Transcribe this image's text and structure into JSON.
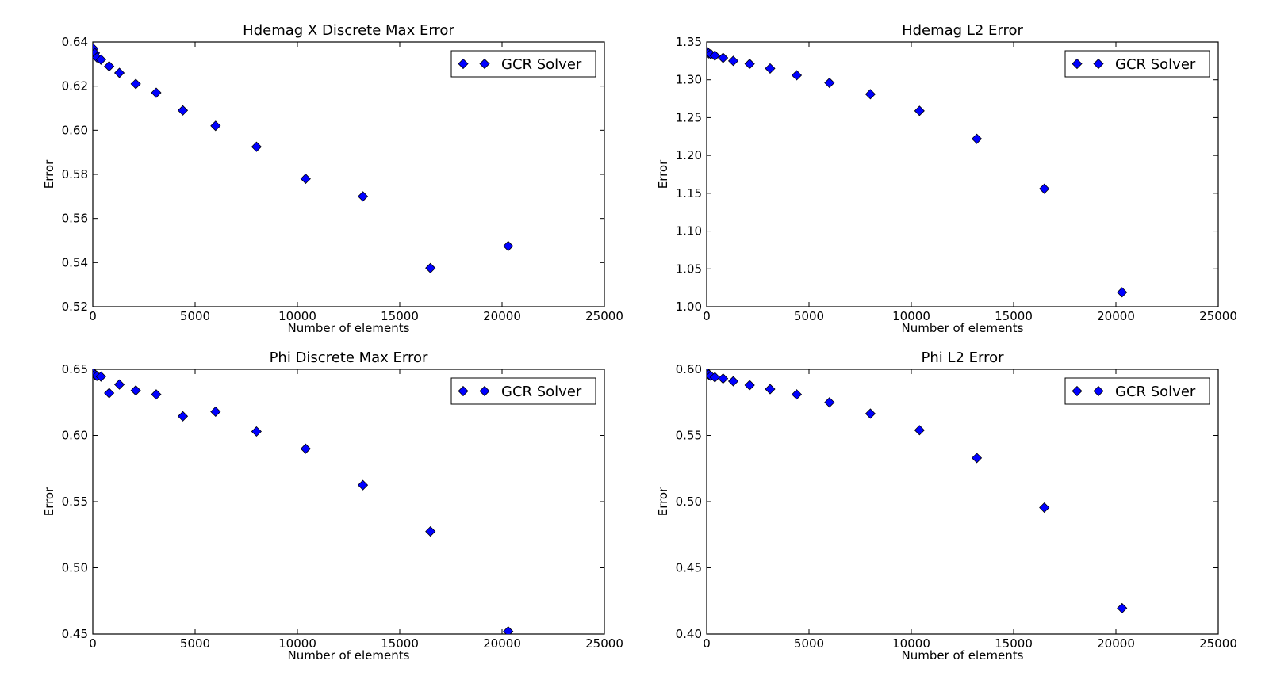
{
  "chart_data": [
    {
      "type": "scatter",
      "title": "Hdemag X Discrete Max Error",
      "xlabel": "Number of elements",
      "ylabel": "Error",
      "xlim": [
        0,
        25000
      ],
      "ylim": [
        0.52,
        0.64
      ],
      "xticks": [
        "0",
        "5000",
        "10000",
        "15000",
        "20000",
        "25000"
      ],
      "yticks": [
        "0.52",
        "0.54",
        "0.56",
        "0.58",
        "0.60",
        "0.62",
        "0.64"
      ],
      "legend": {
        "position": "top-right",
        "entries": [
          "GCR Solver"
        ]
      },
      "series": [
        {
          "name": "GCR Solver",
          "color": "#0000ff",
          "marker": "diamond",
          "x": [
            20,
            100,
            200,
            400,
            800,
            1300,
            2100,
            3100,
            4400,
            6000,
            8000,
            10400,
            13200,
            16500,
            20300
          ],
          "y": [
            0.637,
            0.635,
            0.633,
            0.632,
            0.629,
            0.626,
            0.621,
            0.617,
            0.609,
            0.602,
            0.5925,
            0.578,
            0.57,
            0.5375,
            0.5475
          ]
        }
      ]
    },
    {
      "type": "scatter",
      "title": "Hdemag L2 Error",
      "xlabel": "Number of elements",
      "ylabel": "Error",
      "xlim": [
        0,
        25000
      ],
      "ylim": [
        1.0,
        1.35
      ],
      "xticks": [
        "0",
        "5000",
        "10000",
        "15000",
        "20000",
        "25000"
      ],
      "yticks": [
        "1.00",
        "1.05",
        "1.10",
        "1.15",
        "1.20",
        "1.25",
        "1.30",
        "1.35"
      ],
      "legend": {
        "position": "top-right",
        "entries": [
          "GCR Solver"
        ]
      },
      "series": [
        {
          "name": "GCR Solver",
          "color": "#0000ff",
          "marker": "diamond",
          "x": [
            20,
            100,
            200,
            400,
            800,
            1300,
            2100,
            3100,
            4400,
            6000,
            8000,
            10400,
            13200,
            16500,
            20300
          ],
          "y": [
            1.337,
            1.335,
            1.334,
            1.332,
            1.329,
            1.325,
            1.321,
            1.315,
            1.306,
            1.296,
            1.281,
            1.259,
            1.222,
            1.156,
            1.019
          ]
        }
      ]
    },
    {
      "type": "scatter",
      "title": "Phi Discrete Max Error",
      "xlabel": "Number of elements",
      "ylabel": "Error",
      "xlim": [
        0,
        25000
      ],
      "ylim": [
        0.45,
        0.65
      ],
      "xticks": [
        "0",
        "5000",
        "10000",
        "15000",
        "20000",
        "25000"
      ],
      "yticks": [
        "0.45",
        "0.50",
        "0.55",
        "0.60",
        "0.65"
      ],
      "legend": {
        "position": "top-right",
        "entries": [
          "GCR Solver"
        ]
      },
      "series": [
        {
          "name": "GCR Solver",
          "color": "#0000ff",
          "marker": "diamond",
          "x": [
            20,
            100,
            200,
            400,
            800,
            1300,
            2100,
            3100,
            4400,
            6000,
            8000,
            10400,
            13200,
            16500,
            20300
          ],
          "y": [
            0.6475,
            0.646,
            0.645,
            0.6445,
            0.632,
            0.6385,
            0.634,
            0.631,
            0.6145,
            0.618,
            0.603,
            0.59,
            0.5625,
            0.5275,
            0.452
          ]
        }
      ]
    },
    {
      "type": "scatter",
      "title": "Phi L2 Error",
      "xlabel": "Number of elements",
      "ylabel": "Error",
      "xlim": [
        0,
        25000
      ],
      "ylim": [
        0.4,
        0.6
      ],
      "xticks": [
        "0",
        "5000",
        "10000",
        "15000",
        "20000",
        "25000"
      ],
      "yticks": [
        "0.40",
        "0.45",
        "0.50",
        "0.55",
        "0.60"
      ],
      "legend": {
        "position": "top-right",
        "entries": [
          "GCR Solver"
        ]
      },
      "series": [
        {
          "name": "GCR Solver",
          "color": "#0000ff",
          "marker": "diamond",
          "x": [
            20,
            100,
            200,
            400,
            800,
            1300,
            2100,
            3100,
            4400,
            6000,
            8000,
            10400,
            13200,
            16500,
            20300
          ],
          "y": [
            0.5975,
            0.596,
            0.595,
            0.594,
            0.593,
            0.591,
            0.588,
            0.585,
            0.581,
            0.575,
            0.5665,
            0.554,
            0.533,
            0.4955,
            0.4195
          ]
        }
      ]
    }
  ]
}
